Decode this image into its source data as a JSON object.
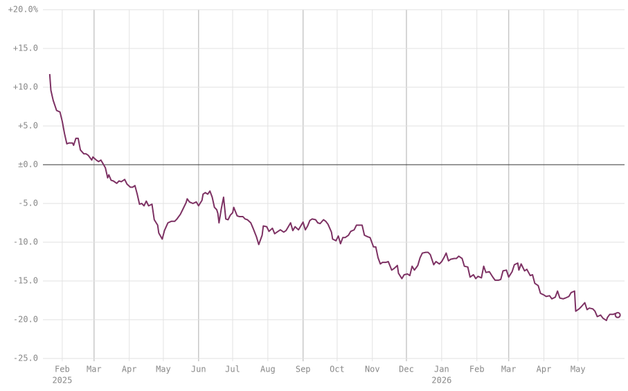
{
  "chart_data": {
    "type": "line",
    "color": "#7d3163",
    "grid": true,
    "xlim": [
      -17,
      495
    ],
    "ylim": [
      -25,
      20
    ],
    "yticks": [
      {
        "value": 20,
        "label": "+20.0%"
      },
      {
        "value": 15,
        "label": "+15.0"
      },
      {
        "value": 10,
        "label": "+10.0"
      },
      {
        "value": 5,
        "label": "+5.0"
      },
      {
        "value": 0,
        "label": "±0.0"
      },
      {
        "value": -5,
        "label": "-5.0"
      },
      {
        "value": -10,
        "label": "-10.0"
      },
      {
        "value": -15,
        "label": "-15.0"
      },
      {
        "value": -20,
        "label": "-20.0"
      },
      {
        "value": -25,
        "label": "-25.0"
      }
    ],
    "xticks": [
      {
        "value": 0,
        "label": "Feb"
      },
      {
        "value": 28,
        "label": "Mar"
      },
      {
        "value": 59,
        "label": "Apr"
      },
      {
        "value": 89,
        "label": "May"
      },
      {
        "value": 120,
        "label": "Jun"
      },
      {
        "value": 150,
        "label": "Jul"
      },
      {
        "value": 181,
        "label": "Aug"
      },
      {
        "value": 212,
        "label": "Sep"
      },
      {
        "value": 242,
        "label": "Oct"
      },
      {
        "value": 273,
        "label": "Nov"
      },
      {
        "value": 303,
        "label": "Dec"
      },
      {
        "value": 334,
        "label": "Jan"
      },
      {
        "value": 365,
        "label": "Feb"
      },
      {
        "value": 393,
        "label": "Mar"
      },
      {
        "value": 424,
        "label": "Apr"
      },
      {
        "value": 454,
        "label": "May"
      }
    ],
    "xtick_years": [
      {
        "value": 0,
        "label": "2025"
      },
      {
        "value": 334,
        "label": "2026"
      }
    ],
    "x": [
      -11,
      -10,
      -8,
      -5,
      -2,
      0,
      2,
      4,
      6,
      9,
      10,
      12,
      14,
      16,
      19,
      21,
      23,
      26,
      27,
      30,
      32,
      34,
      36,
      38,
      40,
      41,
      43,
      45,
      48,
      50,
      52,
      55,
      57,
      60,
      62,
      64,
      66,
      68,
      70,
      72,
      74,
      76,
      79,
      81,
      84,
      85,
      88,
      90,
      93,
      96,
      99,
      101,
      104,
      106,
      109,
      110,
      112,
      115,
      118,
      120,
      123,
      124,
      126,
      128,
      130,
      132,
      134,
      136,
      137,
      138,
      140,
      142,
      144,
      146,
      148,
      150,
      151,
      154,
      156,
      159,
      161,
      163,
      166,
      168,
      171,
      173,
      176,
      177,
      180,
      182,
      185,
      187,
      190,
      192,
      195,
      197,
      199,
      201,
      203,
      205,
      208,
      210,
      212,
      214,
      216,
      218,
      220,
      223,
      225,
      227,
      230,
      232,
      234,
      237,
      238,
      241,
      243,
      245,
      247,
      249,
      252,
      254,
      257,
      259,
      262,
      264,
      266,
      269,
      271,
      274,
      276,
      278,
      280,
      282,
      285,
      287,
      290,
      292,
      295,
      296,
      299,
      301,
      304,
      306,
      308,
      310,
      313,
      315,
      317,
      320,
      322,
      324,
      327,
      329,
      332,
      334,
      336,
      338,
      340,
      342,
      345,
      347,
      349,
      352,
      354,
      357,
      359,
      362,
      364,
      366,
      369,
      371,
      373,
      376,
      379,
      381,
      384,
      386,
      388,
      391,
      393,
      396,
      398,
      401,
      402,
      404,
      407,
      409,
      412,
      414,
      416,
      419,
      421,
      424,
      426,
      429,
      431,
      434,
      436,
      438,
      441,
      443,
      446,
      448,
      451,
      452,
      455,
      457,
      460,
      462,
      464,
      467,
      469,
      471,
      474,
      476,
      479,
      480,
      482,
      485,
      487,
      489
    ],
    "values": [
      11.7,
      9.6,
      8.3,
      7.0,
      6.8,
      5.6,
      4.0,
      2.7,
      2.8,
      2.8,
      2.5,
      3.4,
      3.4,
      1.9,
      1.4,
      1.4,
      1.2,
      0.6,
      1.0,
      0.6,
      0.4,
      0.6,
      0.1,
      -0.4,
      -1.7,
      -1.3,
      -2.0,
      -2.1,
      -2.4,
      -2.1,
      -2.2,
      -1.9,
      -2.5,
      -2.9,
      -2.9,
      -2.7,
      -3.8,
      -5.1,
      -5.0,
      -5.3,
      -4.7,
      -5.3,
      -5.1,
      -7.1,
      -7.8,
      -8.8,
      -9.6,
      -8.5,
      -7.5,
      -7.3,
      -7.3,
      -7.0,
      -6.4,
      -5.8,
      -4.9,
      -4.4,
      -4.8,
      -5.0,
      -4.8,
      -5.3,
      -4.6,
      -3.8,
      -3.6,
      -3.8,
      -3.4,
      -4.2,
      -5.5,
      -5.8,
      -6.3,
      -7.5,
      -5.7,
      -4.2,
      -7.0,
      -7.1,
      -6.5,
      -6.2,
      -5.5,
      -6.6,
      -6.7,
      -6.7,
      -7.0,
      -7.1,
      -7.5,
      -8.2,
      -9.3,
      -10.3,
      -9.1,
      -7.9,
      -8.0,
      -8.6,
      -8.2,
      -8.9,
      -8.6,
      -8.4,
      -8.7,
      -8.5,
      -8.0,
      -7.5,
      -8.5,
      -8.0,
      -8.4,
      -7.9,
      -7.4,
      -8.4,
      -7.9,
      -7.2,
      -7.0,
      -7.1,
      -7.5,
      -7.6,
      -7.1,
      -7.3,
      -7.7,
      -8.7,
      -9.6,
      -9.8,
      -9.2,
      -10.2,
      -9.4,
      -9.4,
      -9.1,
      -8.6,
      -8.4,
      -7.8,
      -7.8,
      -7.8,
      -9.1,
      -9.3,
      -9.4,
      -10.6,
      -10.6,
      -12.0,
      -12.8,
      -12.6,
      -12.6,
      -12.5,
      -13.6,
      -13.4,
      -13.0,
      -14.0,
      -14.7,
      -14.2,
      -14.1,
      -14.3,
      -13.1,
      -13.6,
      -13.0,
      -12.0,
      -11.4,
      -11.3,
      -11.3,
      -11.6,
      -12.9,
      -12.5,
      -12.8,
      -12.5,
      -12.0,
      -11.4,
      -12.4,
      -12.2,
      -12.1,
      -12.1,
      -11.8,
      -12.1,
      -13.1,
      -13.2,
      -14.5,
      -14.2,
      -14.7,
      -14.4,
      -14.6,
      -13.1,
      -13.9,
      -13.8,
      -14.5,
      -14.9,
      -14.9,
      -14.8,
      -13.7,
      -13.6,
      -14.5,
      -13.8,
      -12.9,
      -12.7,
      -13.6,
      -12.8,
      -13.7,
      -13.5,
      -14.3,
      -14.2,
      -15.3,
      -15.6,
      -16.6,
      -16.8,
      -17.0,
      -16.9,
      -17.3,
      -17.1,
      -16.3,
      -17.2,
      -17.3,
      -17.2,
      -17.0,
      -16.5,
      -16.3,
      -18.9,
      -18.6,
      -18.3,
      -17.8,
      -18.7,
      -18.5,
      -18.6,
      -18.9,
      -19.6,
      -19.4,
      -19.8,
      -20.1,
      -19.7,
      -19.3,
      -19.3,
      -19.2,
      -19.4
    ]
  }
}
